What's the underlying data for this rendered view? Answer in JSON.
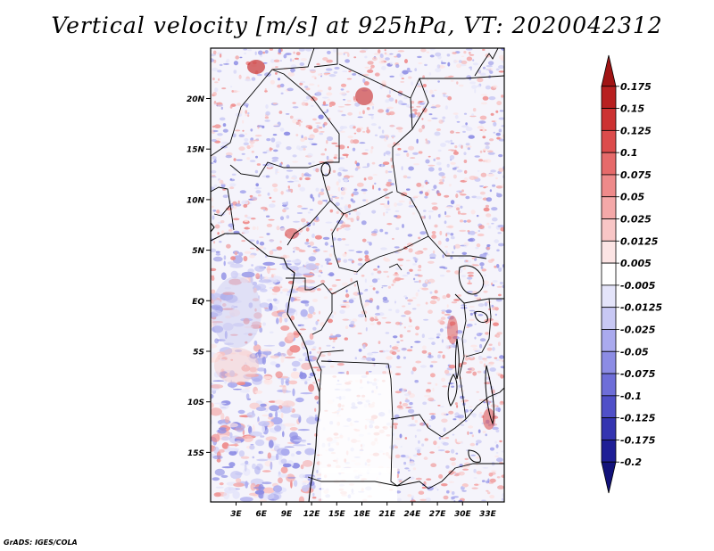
{
  "title": "Vertical velocity [m/s] at 925hPa, VT: 2020042312",
  "credit": "GrADS: IGES/COLA",
  "map": {
    "lon_ticks": [
      "3E",
      "6E",
      "9E",
      "12E",
      "15E",
      "18E",
      "21E",
      "24E",
      "27E",
      "30E",
      "33E"
    ],
    "lat_ticks": [
      "20N",
      "15N",
      "10N",
      "5N",
      "EQ",
      "5S",
      "10S",
      "15S"
    ]
  },
  "colorbar": {
    "labels": [
      "0.175",
      "0.15",
      "0.125",
      "0.1",
      "0.075",
      "0.05",
      "0.025",
      "0.0125",
      "0.005",
      "-0.005",
      "-0.0125",
      "-0.025",
      "-0.05",
      "-0.075",
      "-0.1",
      "-0.125",
      "-0.175",
      "-0.2"
    ],
    "colors": [
      "#a01414",
      "#b82020",
      "#cc3232",
      "#dc4c4c",
      "#e66a6a",
      "#ee8a8a",
      "#f4a8a8",
      "#f8c6c6",
      "#fce4e4",
      "#ffffff",
      "#e4e4fa",
      "#c8c8f4",
      "#aaaaee",
      "#8c8ce4",
      "#6e6ed8",
      "#5050c8",
      "#3434b0",
      "#1e1e96",
      "#12127a"
    ]
  }
}
